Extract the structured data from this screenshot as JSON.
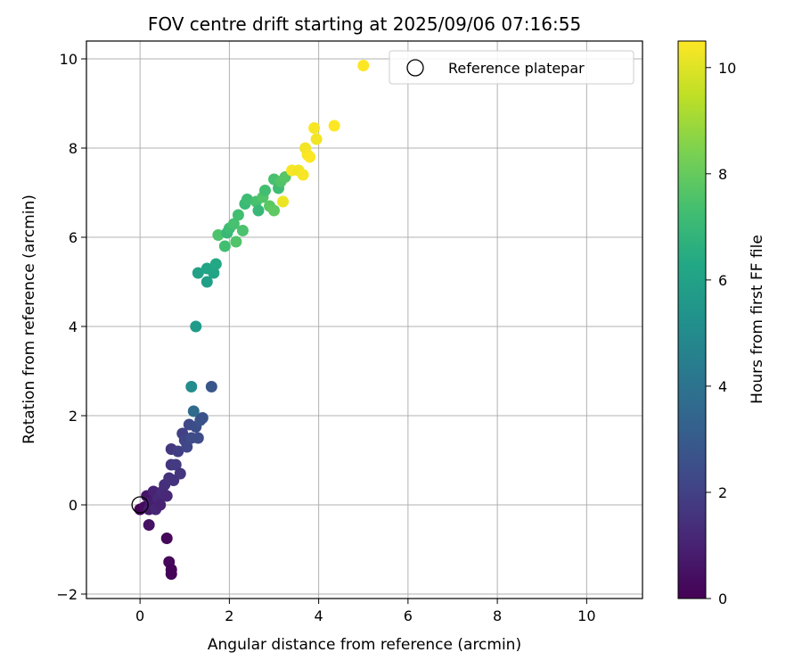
{
  "chart_data": {
    "type": "scatter",
    "title": "FOV centre drift starting at 2025/09/06 07:16:55",
    "xlabel": "Angular distance from reference (arcmin)",
    "ylabel": "Rotation from reference (arcmin)",
    "xlim": [
      -1.2,
      11.25
    ],
    "ylim": [
      -2.1,
      10.4
    ],
    "xticks": [
      0,
      2,
      4,
      6,
      8,
      10
    ],
    "yticks": [
      -2,
      0,
      2,
      4,
      6,
      8,
      10
    ],
    "grid": true,
    "legend": {
      "placement": "top-right",
      "entries": [
        "Reference platepar"
      ]
    },
    "reference_point": {
      "label": "Reference platepar",
      "x": 0,
      "y": 0
    },
    "colorbar": {
      "label": "Hours from first FF file",
      "colormap": "viridis",
      "range": [
        0,
        10.5
      ],
      "ticks": [
        0,
        2,
        4,
        6,
        8,
        10
      ]
    },
    "series": [
      {
        "color_encoding": "hours",
        "points": [
          {
            "x": 0.0,
            "y": -0.1,
            "c": 0.1
          },
          {
            "x": 0.1,
            "y": -0.05,
            "c": 0.3
          },
          {
            "x": 0.15,
            "y": 0.2,
            "c": 0.6
          },
          {
            "x": 0.2,
            "y": -0.1,
            "c": 0.8
          },
          {
            "x": 0.25,
            "y": 0.05,
            "c": 0.9
          },
          {
            "x": 0.3,
            "y": 0.3,
            "c": 1.0
          },
          {
            "x": 0.35,
            "y": -0.1,
            "c": 1.1
          },
          {
            "x": 0.4,
            "y": 0.15,
            "c": 1.2
          },
          {
            "x": 0.45,
            "y": 0.0,
            "c": 1.0
          },
          {
            "x": 0.5,
            "y": 0.3,
            "c": 1.3
          },
          {
            "x": 0.55,
            "y": 0.45,
            "c": 1.4
          },
          {
            "x": 0.6,
            "y": 0.2,
            "c": 1.2
          },
          {
            "x": 0.65,
            "y": 0.6,
            "c": 1.5
          },
          {
            "x": 0.7,
            "y": 0.9,
            "c": 1.6
          },
          {
            "x": 0.7,
            "y": 1.25,
            "c": 1.7
          },
          {
            "x": 0.75,
            "y": 0.55,
            "c": 1.5
          },
          {
            "x": 0.8,
            "y": 0.9,
            "c": 1.8
          },
          {
            "x": 0.85,
            "y": 1.2,
            "c": 1.9
          },
          {
            "x": 0.9,
            "y": 0.7,
            "c": 1.6
          },
          {
            "x": 0.95,
            "y": 1.6,
            "c": 2.0
          },
          {
            "x": 1.0,
            "y": 1.45,
            "c": 2.1
          },
          {
            "x": 1.05,
            "y": 1.3,
            "c": 2.2
          },
          {
            "x": 1.1,
            "y": 1.8,
            "c": 2.3
          },
          {
            "x": 1.15,
            "y": 1.5,
            "c": 2.4
          },
          {
            "x": 1.2,
            "y": 2.1,
            "c": 3.6
          },
          {
            "x": 1.25,
            "y": 1.75,
            "c": 2.5
          },
          {
            "x": 1.3,
            "y": 1.5,
            "c": 2.4
          },
          {
            "x": 1.35,
            "y": 1.9,
            "c": 2.7
          },
          {
            "x": 1.4,
            "y": 1.95,
            "c": 2.6
          },
          {
            "x": 1.15,
            "y": 2.65,
            "c": 5.1
          },
          {
            "x": 1.6,
            "y": 2.65,
            "c": 2.8
          },
          {
            "x": 0.2,
            "y": -0.45,
            "c": 0.5
          },
          {
            "x": 0.6,
            "y": -0.75,
            "c": 0.2
          },
          {
            "x": 0.65,
            "y": -1.28,
            "c": 0.2
          },
          {
            "x": 0.7,
            "y": -1.45,
            "c": 0.1
          },
          {
            "x": 0.7,
            "y": -1.55,
            "c": 0.1
          },
          {
            "x": 1.25,
            "y": 4.0,
            "c": 5.7
          },
          {
            "x": 1.3,
            "y": 5.2,
            "c": 6.0
          },
          {
            "x": 1.5,
            "y": 5.3,
            "c": 6.1
          },
          {
            "x": 1.5,
            "y": 5.0,
            "c": 5.9
          },
          {
            "x": 1.65,
            "y": 5.2,
            "c": 6.1
          },
          {
            "x": 1.7,
            "y": 5.4,
            "c": 6.3
          },
          {
            "x": 1.75,
            "y": 6.05,
            "c": 7.5
          },
          {
            "x": 1.9,
            "y": 5.8,
            "c": 7.3
          },
          {
            "x": 1.95,
            "y": 6.1,
            "c": 7.0
          },
          {
            "x": 2.0,
            "y": 6.2,
            "c": 7.2
          },
          {
            "x": 2.1,
            "y": 6.3,
            "c": 7.4
          },
          {
            "x": 2.15,
            "y": 5.9,
            "c": 7.6
          },
          {
            "x": 2.2,
            "y": 6.5,
            "c": 7.3
          },
          {
            "x": 2.3,
            "y": 6.15,
            "c": 7.5
          },
          {
            "x": 2.35,
            "y": 6.75,
            "c": 7.1
          },
          {
            "x": 2.4,
            "y": 6.85,
            "c": 7.2
          },
          {
            "x": 2.6,
            "y": 6.8,
            "c": 7.4
          },
          {
            "x": 2.65,
            "y": 6.6,
            "c": 7.0
          },
          {
            "x": 2.75,
            "y": 6.9,
            "c": 7.6
          },
          {
            "x": 2.8,
            "y": 7.05,
            "c": 7.3
          },
          {
            "x": 2.9,
            "y": 6.7,
            "c": 7.8
          },
          {
            "x": 3.0,
            "y": 7.3,
            "c": 7.4
          },
          {
            "x": 3.0,
            "y": 6.6,
            "c": 7.9
          },
          {
            "x": 3.1,
            "y": 7.1,
            "c": 7.2
          },
          {
            "x": 3.15,
            "y": 7.25,
            "c": 7.6
          },
          {
            "x": 3.25,
            "y": 7.35,
            "c": 7.7
          },
          {
            "x": 3.2,
            "y": 6.8,
            "c": 10.2
          },
          {
            "x": 3.4,
            "y": 7.5,
            "c": 10.4
          },
          {
            "x": 3.55,
            "y": 7.5,
            "c": 10.3
          },
          {
            "x": 3.65,
            "y": 7.4,
            "c": 10.4
          },
          {
            "x": 3.7,
            "y": 8.0,
            "c": 10.3
          },
          {
            "x": 3.75,
            "y": 7.85,
            "c": 10.4
          },
          {
            "x": 3.8,
            "y": 7.8,
            "c": 10.5
          },
          {
            "x": 3.9,
            "y": 8.45,
            "c": 10.4
          },
          {
            "x": 3.95,
            "y": 8.2,
            "c": 10.3
          },
          {
            "x": 4.35,
            "y": 8.5,
            "c": 10.5
          },
          {
            "x": 5.0,
            "y": 9.85,
            "c": 10.5
          }
        ]
      }
    ]
  }
}
